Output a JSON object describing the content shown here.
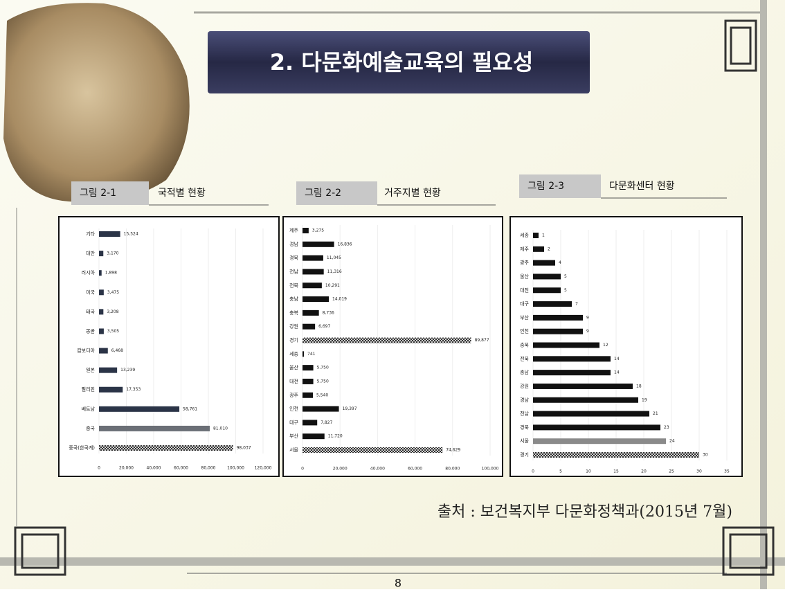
{
  "slide_title": "2. 다문화예술교육의 필요성",
  "source": "출처 : 보건복지부 다문화정책과(2015년 7월)",
  "page_number": "8",
  "chart_data": [
    {
      "type": "hbar",
      "figure": "그림 2-1",
      "title": "국적별 현황",
      "categories": [
        "기타",
        "대만",
        "러시아",
        "미국",
        "태국",
        "몽골",
        "캄보디아",
        "일본",
        "필리핀",
        "베트남",
        "중국",
        "중국(한국계)"
      ],
      "values": [
        15524,
        3170,
        1898,
        3475,
        3208,
        3505,
        6468,
        13239,
        17353,
        58761,
        81010,
        98037
      ],
      "value_labels": [
        "15,524",
        "3,170",
        "1,898",
        "3,475",
        "3,208",
        "3,505",
        "6,468",
        "13,239",
        "17,353",
        "58,761",
        "81,010",
        "98,037"
      ],
      "colors": [
        "#2b3447",
        "#2b3447",
        "#2b3447",
        "#2b3447",
        "#2b3447",
        "#2b3447",
        "#2b3447",
        "#2b3447",
        "#2b3447",
        "#2b3447",
        "#6b6f76",
        "#2b3447"
      ],
      "hatched": [
        false,
        false,
        false,
        false,
        false,
        false,
        false,
        false,
        false,
        false,
        false,
        true
      ],
      "xlim": [
        0,
        120000
      ],
      "xticks": [
        0,
        {
          "value": 20000,
          "label": "20,000"
        },
        {
          "value": 40000,
          "label": "40,000"
        },
        {
          "value": 60000,
          "label": "60,000"
        },
        {
          "value": 80000,
          "label": "80,000"
        },
        {
          "value": 100000,
          "label": "100,000"
        },
        {
          "value": 120000,
          "label": "120,000"
        }
      ]
    },
    {
      "type": "hbar",
      "figure": "그림 2-2",
      "title": "거주지별 현황",
      "categories": [
        "제주",
        "경남",
        "경북",
        "전남",
        "전북",
        "충남",
        "충북",
        "강원",
        "경기",
        "세종",
        "울산",
        "대전",
        "광주",
        "인천",
        "대구",
        "부산",
        "서울"
      ],
      "values": [
        3275,
        16836,
        11045,
        11316,
        10291,
        14019,
        8736,
        6697,
        89877,
        741,
        5750,
        5750,
        5540,
        19397,
        7827,
        11720,
        74629
      ],
      "value_labels": [
        "3,275",
        "16,836",
        "11,045",
        "11,316",
        "10,291",
        "14,019",
        "8,736",
        "6,697",
        "89,877",
        "741",
        "5,750",
        "5,750",
        "5,540",
        "19,397",
        "7,827",
        "11,720",
        "74,629"
      ],
      "colors": [
        "#111111",
        "#111111",
        "#111111",
        "#111111",
        "#111111",
        "#111111",
        "#111111",
        "#111111",
        "#111111",
        "#111111",
        "#111111",
        "#111111",
        "#111111",
        "#111111",
        "#111111",
        "#111111",
        "#111111"
      ],
      "hatched": [
        false,
        false,
        false,
        false,
        false,
        false,
        false,
        false,
        true,
        false,
        false,
        false,
        false,
        false,
        false,
        false,
        true
      ],
      "xlim": [
        0,
        100000
      ],
      "xticks": [
        0,
        {
          "value": 20000,
          "label": "20,000"
        },
        {
          "value": 40000,
          "label": "40,000"
        },
        {
          "value": 60000,
          "label": "60,000"
        },
        {
          "value": 80000,
          "label": "80,000"
        },
        {
          "value": 100000,
          "label": "100,000"
        }
      ]
    },
    {
      "type": "hbar",
      "figure": "그림 2-3",
      "title": "다문화센터 현황",
      "categories": [
        "세종",
        "제주",
        "광주",
        "울산",
        "대전",
        "대구",
        "부산",
        "인천",
        "충북",
        "전북",
        "충남",
        "강원",
        "경남",
        "전남",
        "경북",
        "서울",
        "경기"
      ],
      "values": [
        1,
        2,
        4,
        5,
        5,
        7,
        9,
        9,
        12,
        14,
        14,
        18,
        19,
        21,
        23,
        24,
        30
      ],
      "colors": [
        "#111111",
        "#111111",
        "#111111",
        "#111111",
        "#111111",
        "#111111",
        "#111111",
        "#111111",
        "#111111",
        "#111111",
        "#111111",
        "#111111",
        "#111111",
        "#111111",
        "#111111",
        "#8a8a8a",
        "#111111"
      ],
      "hatched": [
        false,
        false,
        false,
        false,
        false,
        false,
        false,
        false,
        false,
        false,
        false,
        false,
        false,
        false,
        false,
        false,
        true
      ],
      "xlim": [
        0,
        35
      ],
      "xticks": [
        0,
        5,
        10,
        15,
        20,
        25,
        30,
        35
      ]
    }
  ]
}
